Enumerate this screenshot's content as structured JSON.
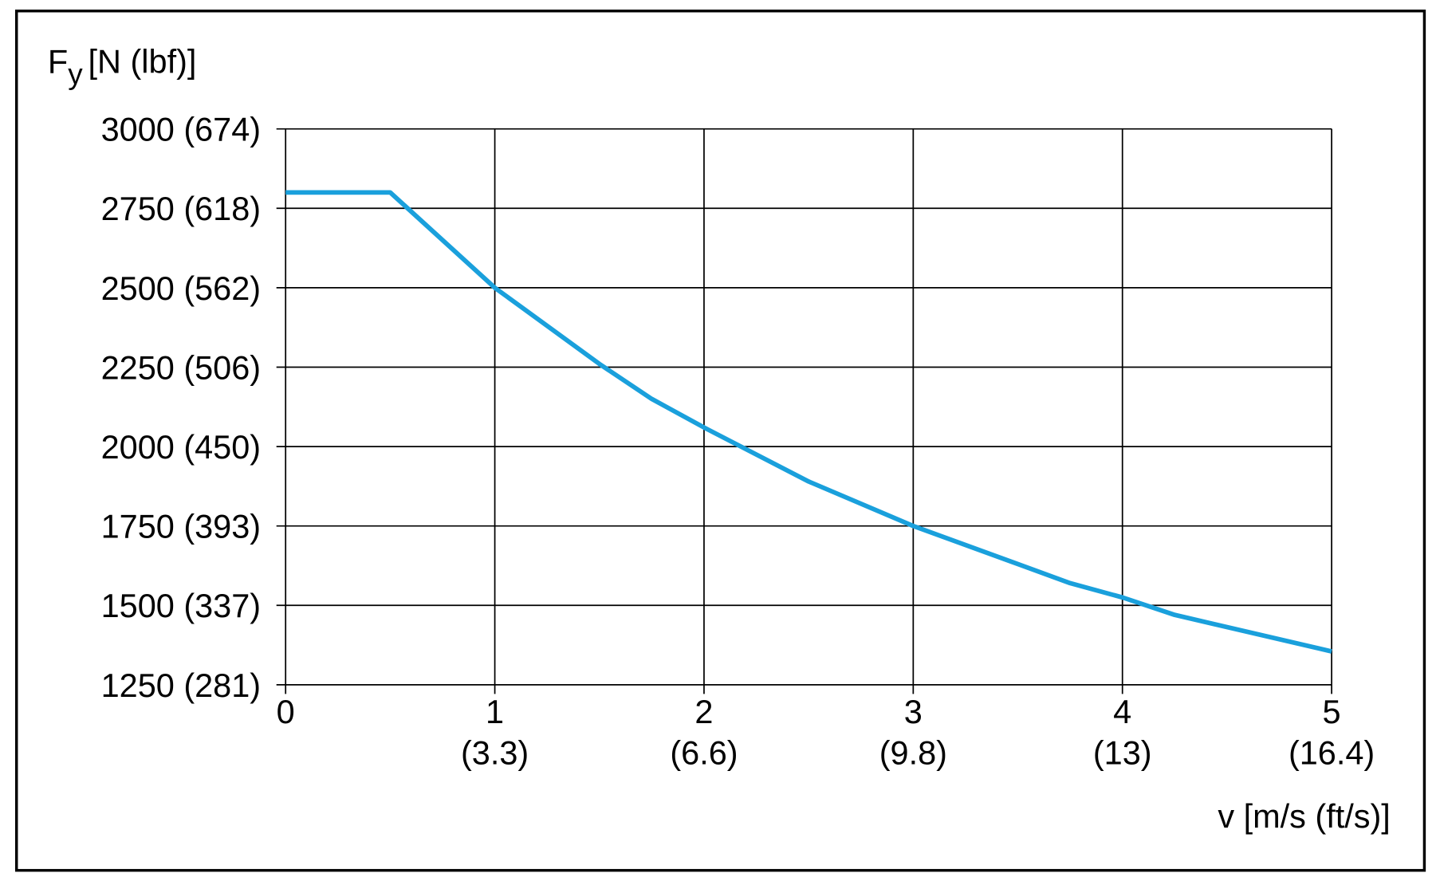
{
  "chart_data": {
    "type": "line",
    "ylabel": {
      "symbol": "F",
      "subscript": "y",
      "unit": "[N (lbf)]"
    },
    "xlabel": "v [m/s (ft/s)]",
    "x": [
      0,
      0.5,
      1,
      1.5,
      1.75,
      2,
      2.5,
      3,
      3.25,
      3.5,
      3.75,
      4,
      4.25,
      5
    ],
    "series": [
      {
        "name": "Fy",
        "color": "#1aa0dc",
        "values": [
          2800,
          2800,
          2500,
          2260,
          2150,
          2060,
          1890,
          1750,
          1690,
          1630,
          1570,
          1525,
          1470,
          1355
        ]
      }
    ],
    "xlim": [
      0,
      5
    ],
    "xticks": [
      0,
      1,
      2,
      3,
      4,
      5
    ],
    "x_secondary_labels": [
      null,
      "(3.3)",
      "(6.6)",
      "(9.8)",
      "(13)",
      "(16.4)"
    ],
    "ylim": [
      1250,
      3000
    ],
    "yticks": [
      {
        "value": 1250,
        "label": "1250 (281)"
      },
      {
        "value": 1500,
        "label": "1500 (337)"
      },
      {
        "value": 1750,
        "label": "1750 (393)"
      },
      {
        "value": 2000,
        "label": "2000 (450)"
      },
      {
        "value": 2250,
        "label": "2250 (506)"
      },
      {
        "value": 2500,
        "label": "2500 (562)"
      },
      {
        "value": 2750,
        "label": "2750 (618)"
      },
      {
        "value": 3000,
        "label": "3000 (674)"
      }
    ],
    "grid": true
  }
}
